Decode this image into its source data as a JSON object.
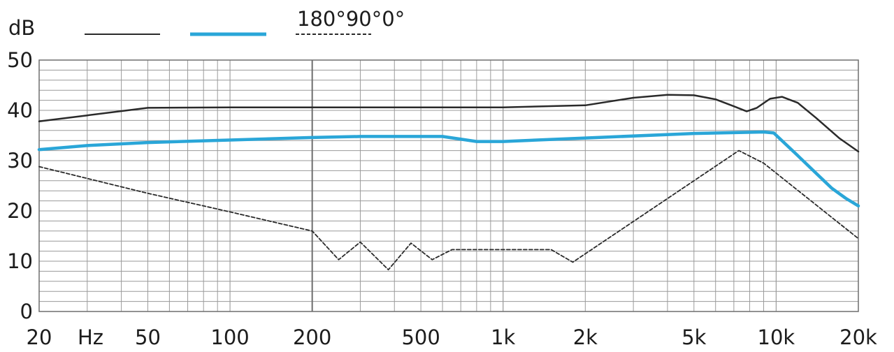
{
  "chart_data": {
    "type": "line",
    "x_scale": "log",
    "x_unit": "Hz",
    "y_unit": "dB",
    "xlim": [
      20,
      20000
    ],
    "ylim": [
      0,
      50
    ],
    "grid": true,
    "x_ticks": [
      {
        "value": 20,
        "label": "20"
      },
      {
        "value": 50,
        "label": "50"
      },
      {
        "value": 100,
        "label": "100"
      },
      {
        "value": 200,
        "label": "200"
      },
      {
        "value": 500,
        "label": "500"
      },
      {
        "value": 1000,
        "label": "1k"
      },
      {
        "value": 2000,
        "label": "2k"
      },
      {
        "value": 5000,
        "label": "5k"
      },
      {
        "value": 10000,
        "label": "10k"
      },
      {
        "value": 20000,
        "label": "20k"
      }
    ],
    "y_ticks": [
      {
        "value": 0,
        "label": "0"
      },
      {
        "value": 10,
        "label": "10"
      },
      {
        "value": 20,
        "label": "20"
      },
      {
        "value": 30,
        "label": "30"
      },
      {
        "value": 40,
        "label": "40"
      },
      {
        "value": 50,
        "label": "50"
      }
    ],
    "legend_label": "180°90°0°",
    "series": [
      {
        "color": "#2a2a2a",
        "style": "solid",
        "points": [
          [
            20,
            37.8
          ],
          [
            30,
            39.0
          ],
          [
            50,
            40.5
          ],
          [
            100,
            40.6
          ],
          [
            200,
            40.6
          ],
          [
            500,
            40.6
          ],
          [
            1000,
            40.6
          ],
          [
            2000,
            41.0
          ],
          [
            3000,
            42.5
          ],
          [
            4000,
            43.1
          ],
          [
            5000,
            43.0
          ],
          [
            6000,
            42.2
          ],
          [
            7000,
            40.8
          ],
          [
            7800,
            39.8
          ],
          [
            8500,
            40.5
          ],
          [
            9500,
            42.3
          ],
          [
            10500,
            42.7
          ],
          [
            12000,
            41.5
          ],
          [
            14000,
            38.5
          ],
          [
            17000,
            34.5
          ],
          [
            20000,
            31.8
          ]
        ]
      },
      {
        "color": "#2aa6d8",
        "style": "solid",
        "points": [
          [
            20,
            32.2
          ],
          [
            30,
            33.0
          ],
          [
            50,
            33.6
          ],
          [
            100,
            34.1
          ],
          [
            200,
            34.6
          ],
          [
            300,
            34.8
          ],
          [
            400,
            34.8
          ],
          [
            600,
            34.8
          ],
          [
            800,
            33.8
          ],
          [
            1000,
            33.8
          ],
          [
            2000,
            34.5
          ],
          [
            5000,
            35.4
          ],
          [
            9000,
            35.7
          ],
          [
            9800,
            35.5
          ],
          [
            12000,
            31.0
          ],
          [
            14000,
            27.5
          ],
          [
            16000,
            24.5
          ],
          [
            18000,
            22.5
          ],
          [
            20000,
            21.0
          ]
        ]
      },
      {
        "color": "#2a2a2a",
        "style": "dashed",
        "points": [
          [
            20,
            28.8
          ],
          [
            50,
            23.5
          ],
          [
            100,
            19.8
          ],
          [
            200,
            16.0
          ],
          [
            250,
            10.3
          ],
          [
            300,
            13.8
          ],
          [
            380,
            8.3
          ],
          [
            460,
            13.6
          ],
          [
            550,
            10.3
          ],
          [
            650,
            12.3
          ],
          [
            1500,
            12.3
          ],
          [
            1800,
            9.8
          ],
          [
            7300,
            32.0
          ],
          [
            9000,
            29.5
          ],
          [
            20000,
            14.5
          ]
        ]
      }
    ]
  }
}
